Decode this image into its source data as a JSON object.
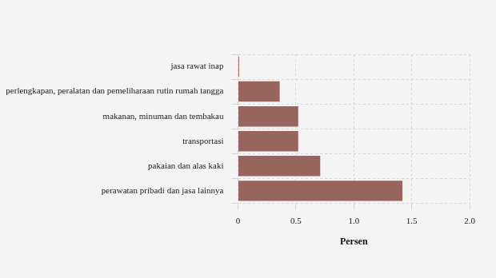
{
  "chart_data": {
    "type": "bar",
    "orientation": "horizontal",
    "categories": [
      "jasa rawat inap",
      "perlengkapan, peralatan dan pemeliharaan rutin rumah tangga",
      "makanan, minuman dan tembakau",
      "transportasi",
      "pakaian dan alas kaki",
      "perawatan pribadi dan jasa lainnya"
    ],
    "values": [
      0.01,
      0.36,
      0.52,
      0.52,
      0.71,
      1.42
    ],
    "color": "#98655e",
    "xlabel": "Persen",
    "xlim": [
      0,
      2.0
    ],
    "xticks": [
      0,
      0.5,
      {
        "value": 1.0,
        "label": "1.0"
      },
      1.5,
      {
        "value": 2.0,
        "label": "2.0"
      }
    ],
    "grid": true
  }
}
